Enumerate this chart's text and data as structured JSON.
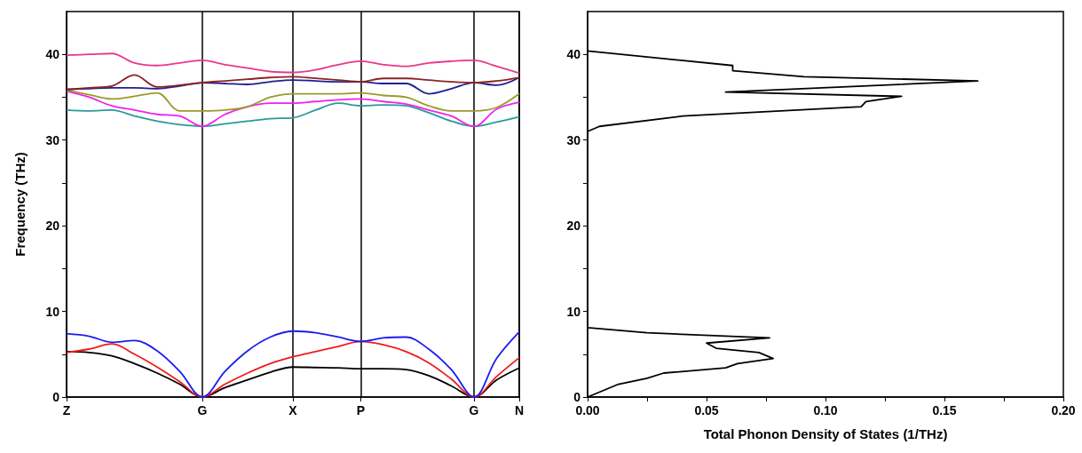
{
  "chart_data": [
    {
      "type": "line",
      "ylabel": "Frequency (THz)",
      "categories": [
        "Z",
        null,
        null,
        null,
        null,
        null,
        "G",
        null,
        null,
        null,
        "X",
        null,
        null,
        "P",
        null,
        null,
        null,
        null,
        "G",
        null,
        "N"
      ],
      "ylim": [
        0,
        45
      ],
      "yticks": [
        0,
        {
          "value": 5,
          "label": null
        },
        10,
        {
          "value": 15,
          "label": null
        },
        20,
        {
          "value": 25,
          "label": null
        },
        30,
        {
          "value": 35,
          "label": null
        },
        40
      ],
      "grid": "x",
      "marker": "none",
      "line_style": "solid",
      "series": [
        {
          "color": "#000000",
          "values": [
            5.3,
            5.2,
            4.8,
            3.9,
            2.8,
            1.5,
            0,
            1.1,
            2.0,
            2.9,
            3.5,
            3.45,
            3.4,
            3.3,
            3.3,
            3.2,
            2.5,
            1.3,
            0,
            2.0,
            3.4
          ]
        },
        {
          "color": "#ee1c1c",
          "values": [
            5.2,
            5.6,
            6.2,
            5.0,
            3.5,
            1.8,
            0,
            1.5,
            2.8,
            3.9,
            4.7,
            5.3,
            5.9,
            6.5,
            6.1,
            5.3,
            4.0,
            2.1,
            0,
            2.4,
            4.6
          ]
        },
        {
          "color": "#1c1cee",
          "values": [
            7.4,
            7.1,
            6.4,
            6.6,
            5.4,
            3.0,
            0,
            3.0,
            5.4,
            7.0,
            7.7,
            7.5,
            7.0,
            6.5,
            6.9,
            7.0,
            5.6,
            3.2,
            0,
            4.5,
            7.6
          ]
        },
        {
          "color": "#2a9a9a",
          "values": [
            33.5,
            33.4,
            33.5,
            32.8,
            32.2,
            31.8,
            31.6,
            31.9,
            32.2,
            32.5,
            32.6,
            33.5,
            34.3,
            34.0,
            34.1,
            34.0,
            33.2,
            32.2,
            31.6,
            32.1,
            32.7
          ]
        },
        {
          "color": "#ee22ee",
          "values": [
            35.7,
            35.0,
            34.0,
            33.5,
            33.0,
            32.8,
            31.6,
            33.0,
            33.9,
            34.3,
            34.3,
            34.5,
            34.7,
            34.8,
            34.5,
            34.2,
            33.5,
            32.8,
            31.6,
            33.6,
            34.4
          ]
        },
        {
          "color": "#9a9a2a",
          "values": [
            35.8,
            35.3,
            34.8,
            35.1,
            35.5,
            33.4,
            33.4,
            33.5,
            33.9,
            35.0,
            35.4,
            35.4,
            35.4,
            35.5,
            35.2,
            35.0,
            34.0,
            33.4,
            33.4,
            33.8,
            35.4
          ]
        },
        {
          "color": "#1f1f8f",
          "values": [
            35.9,
            36.0,
            36.1,
            36.1,
            36.0,
            36.3,
            36.7,
            36.6,
            36.5,
            36.8,
            37.0,
            36.9,
            36.8,
            36.8,
            36.6,
            36.6,
            35.4,
            36.0,
            36.7,
            36.4,
            37.3
          ]
        },
        {
          "color": "#8b2323",
          "values": [
            35.9,
            36.1,
            36.3,
            37.6,
            36.2,
            36.4,
            36.7,
            36.9,
            37.1,
            37.3,
            37.4,
            37.2,
            37.0,
            36.8,
            37.2,
            37.2,
            37.0,
            36.8,
            36.7,
            36.9,
            37.3
          ]
        },
        {
          "color": "#e8388a",
          "values": [
            39.9,
            40.0,
            40.1,
            39.0,
            38.7,
            39.0,
            39.3,
            38.8,
            38.4,
            38.0,
            37.9,
            38.2,
            38.8,
            39.2,
            38.8,
            38.6,
            39.0,
            39.2,
            39.3,
            38.6,
            37.8
          ]
        }
      ]
    },
    {
      "type": "line",
      "xlabel": "Total Phonon Density of States (1/THz)",
      "xlim": [
        0,
        0.2
      ],
      "xticks": [
        {
          "value": 0,
          "label": "0.00"
        },
        {
          "value": 0.025,
          "label": null
        },
        0.05,
        {
          "value": 0.075,
          "label": null
        },
        {
          "value": 0.1,
          "label": "0.10"
        },
        {
          "value": 0.125,
          "label": null
        },
        0.15,
        {
          "value": 0.175,
          "label": null
        },
        {
          "value": 0.2,
          "label": "0.20"
        }
      ],
      "ylim": [
        0,
        45
      ],
      "yticks": [
        0,
        {
          "value": 5,
          "label": null
        },
        10,
        {
          "value": 15,
          "label": null
        },
        20,
        {
          "value": 25,
          "label": null
        },
        30,
        {
          "value": 35,
          "label": null
        },
        40
      ],
      "marker": "none",
      "line_style": "solid",
      "series": [
        {
          "color": "#000000",
          "x": [
            0,
            0.013,
            0.025,
            0.032,
            0.058,
            0.063,
            0.078,
            0.072,
            0.054,
            0.05,
            0.0765,
            0.025,
            0,
            0,
            0.005,
            0.04,
            0.115,
            0.117,
            0.132,
            0.058,
            0.164,
            0.091,
            0.061,
            0.061,
            0
          ],
          "values": [
            0,
            1.5,
            2.2,
            2.8,
            3.4,
            3.9,
            4.5,
            5.2,
            5.7,
            6.3,
            6.9,
            7.5,
            8.1,
            31.0,
            31.6,
            32.8,
            33.9,
            34.5,
            35.1,
            35.6,
            36.9,
            37.4,
            38.1,
            38.7,
            40.4
          ]
        }
      ]
    }
  ]
}
